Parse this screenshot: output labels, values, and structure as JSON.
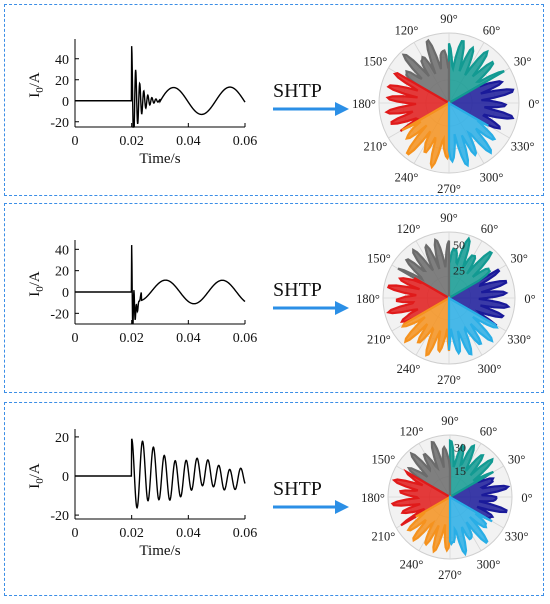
{
  "arrow_label": "SHTP",
  "panels": [
    {
      "signal": {
        "ylabel": "I",
        "ylabel_sub": "0",
        "ylabel_unit": "/A",
        "xlabel": "Time/s",
        "xticks": [
          "0",
          "0.02",
          "0.04",
          "0.06"
        ],
        "yticks": [
          "40",
          "20",
          "0",
          "-20"
        ],
        "ylim": [
          -25,
          55
        ]
      },
      "polar": {
        "angles": [
          "90°",
          "60°",
          "30°",
          "0°",
          "330°",
          "300°",
          "270°",
          "240°",
          "210°",
          "180°",
          "150°",
          "120°"
        ],
        "radial_ticks": []
      }
    },
    {
      "signal": {
        "ylabel": "I",
        "ylabel_sub": "0",
        "ylabel_unit": "/A",
        "xlabel": "",
        "xticks": [
          "0",
          "0.02",
          "0.04",
          "0.06"
        ],
        "yticks": [
          "40",
          "20",
          "0",
          "-20"
        ],
        "ylim": [
          -30,
          45
        ]
      },
      "polar": {
        "angles": [
          "90°",
          "60°",
          "30°",
          "0°",
          "330°",
          "300°",
          "270°",
          "240°",
          "210°",
          "180°",
          "150°",
          "120°"
        ],
        "radial_ticks": [
          "50",
          "25"
        ]
      }
    },
    {
      "signal": {
        "ylabel": "I",
        "ylabel_sub": "0",
        "ylabel_unit": "/A",
        "xlabel": "Time/s",
        "xticks": [
          "0",
          "0.02",
          "0.04",
          "0.06"
        ],
        "yticks": [
          "20",
          "0",
          "-20"
        ],
        "ylim": [
          -22,
          22
        ]
      },
      "polar": {
        "angles": [
          "90°",
          "60°",
          "30°",
          "0°",
          "330°",
          "300°",
          "270°",
          "240°",
          "210°",
          "180°",
          "150°",
          "120°"
        ],
        "radial_ticks": [
          "30",
          "15"
        ]
      }
    }
  ],
  "colors": {
    "frame": "#3c8ee6",
    "arrow": "#2b8fe6",
    "sector_0": "#1a1a9a",
    "sector_60": "#129a92",
    "sector_120": "#6b6b6b",
    "sector_180": "#e01a1a",
    "sector_240": "#f5921e",
    "sector_300": "#29aee6"
  }
}
